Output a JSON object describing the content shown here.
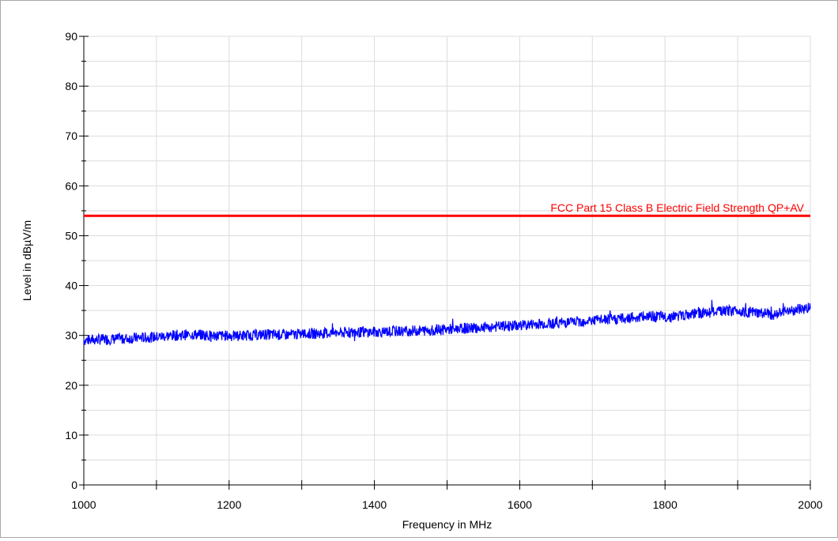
{
  "chart_data": {
    "type": "line",
    "xlabel": "Frequency in MHz",
    "ylabel": "Level in dBµV/m",
    "xlim": [
      1000,
      2000
    ],
    "ylim": [
      0,
      90
    ],
    "x_ticks": [
      1000,
      1200,
      1400,
      1600,
      1800,
      2000
    ],
    "y_ticks": [
      0,
      10,
      20,
      30,
      40,
      50,
      60,
      70,
      80,
      90
    ],
    "grid": true,
    "series": [
      {
        "name": "",
        "color": "#0000ff",
        "x": [
          1000,
          1025,
          1050,
          1075,
          1100,
          1125,
          1150,
          1175,
          1200,
          1225,
          1250,
          1275,
          1300,
          1325,
          1350,
          1375,
          1400,
          1425,
          1450,
          1475,
          1500,
          1525,
          1550,
          1575,
          1600,
          1625,
          1650,
          1675,
          1700,
          1725,
          1750,
          1775,
          1800,
          1825,
          1850,
          1875,
          1900,
          1925,
          1950,
          1975,
          2000
        ],
        "y": [
          29.0,
          29.2,
          29.3,
          29.5,
          29.7,
          30.0,
          30.2,
          30.0,
          29.9,
          30.0,
          30.2,
          30.1,
          30.3,
          30.4,
          30.5,
          30.6,
          30.7,
          30.8,
          30.9,
          31.0,
          31.2,
          31.4,
          31.6,
          31.8,
          32.0,
          32.3,
          32.5,
          32.7,
          33.0,
          33.2,
          33.5,
          33.8,
          33.7,
          34.0,
          34.5,
          34.8,
          35.0,
          34.5,
          34.2,
          35.0,
          35.6
        ]
      }
    ],
    "limit_line": {
      "label": "FCC Part 15 Class B Electric Field Strength QP+AV",
      "value": 54,
      "color": "#ff0000"
    }
  }
}
